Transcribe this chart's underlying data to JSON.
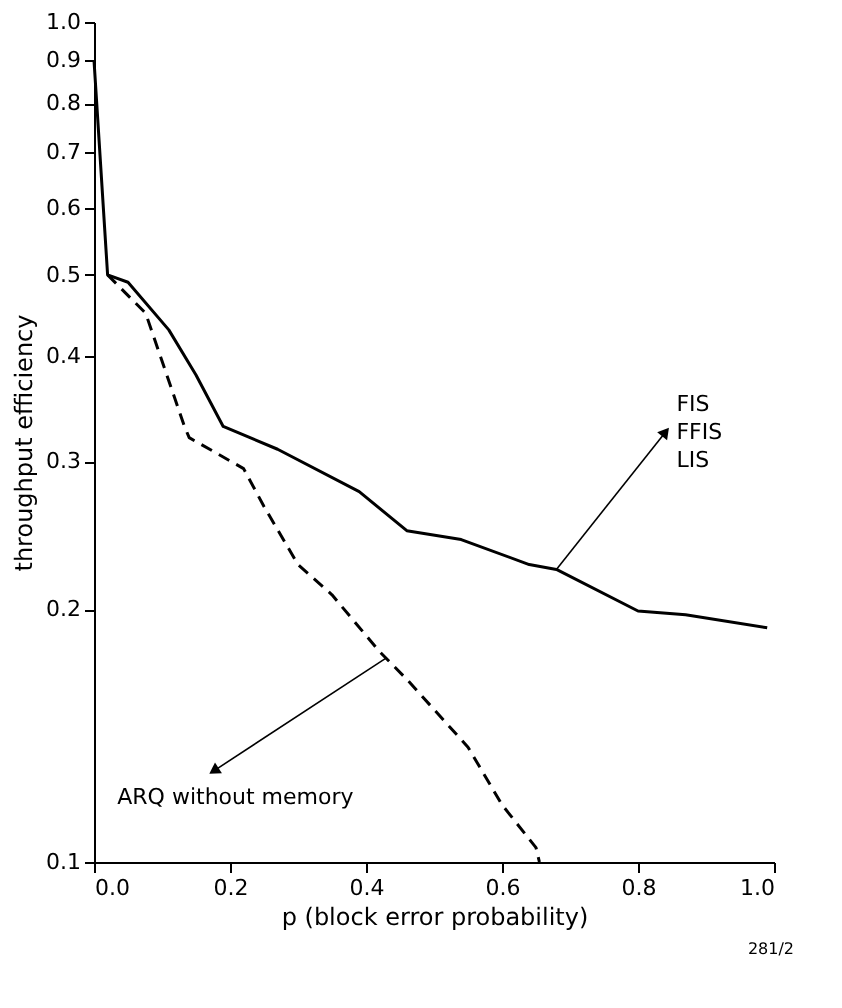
{
  "chart_data": {
    "type": "line",
    "xlabel": "p (block  error probability)",
    "ylabel": "throughput  efficiency",
    "log": true,
    "grid": false,
    "marker": "none",
    "xlim": [
      0,
      1
    ],
    "xticks": [
      {
        "value": 0,
        "label": "0.0"
      },
      0.2,
      0.4,
      0.6,
      0.8,
      {
        "value": 1,
        "label": "1.0"
      }
    ],
    "ylim": [
      0.1,
      1.0
    ],
    "yticks": [
      0.1,
      0.2,
      0.3,
      0.4,
      0.5,
      0.6,
      0.7,
      0.8,
      0.9,
      {
        "value": 1,
        "label": "1.0"
      }
    ],
    "series": [
      {
        "color": "#000000",
        "line_style": "solid",
        "x": [
          0,
          0.02,
          0.05,
          0.11,
          0.15,
          0.19,
          0.27,
          0.39,
          0.46,
          0.54,
          0.64,
          0.68,
          0.8,
          0.87,
          0.99
        ],
        "values": [
          0.9,
          0.5,
          0.49,
          0.43,
          0.38,
          0.33,
          0.31,
          0.276,
          0.248,
          0.242,
          0.226,
          0.223,
          0.199,
          0.197,
          0.19
        ]
      },
      {
        "color": "#000000",
        "line_style": "dashed",
        "x": [
          0.02,
          0.076,
          0.133,
          0.14,
          0.22,
          0.25,
          0.3,
          0.35,
          0.42,
          0.46,
          0.55,
          0.6,
          0.65,
          0.655
        ],
        "values": [
          0.5,
          0.45,
          0.33,
          0.32,
          0.294,
          0.265,
          0.226,
          0.208,
          0.178,
          0.165,
          0.137,
          0.117,
          0.104,
          0.1
        ]
      }
    ],
    "annotations": [
      {
        "text": "FIS\nFFIS\nLIS",
        "x": 0.68,
        "y": 0.223
      },
      {
        "text": "ARQ without memory",
        "x": 0.43,
        "y": 0.175
      },
      "281/2"
    ]
  }
}
